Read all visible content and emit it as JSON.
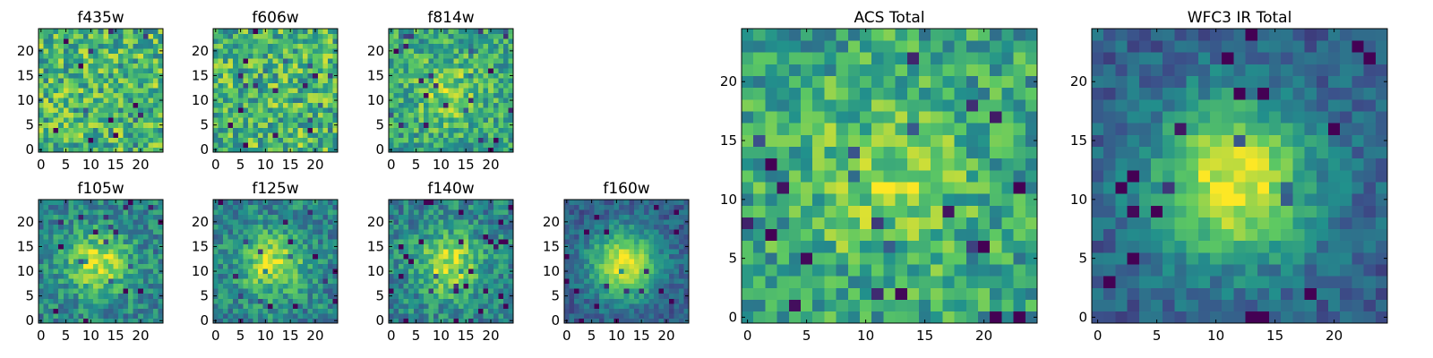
{
  "chart_data": [
    {
      "type": "heatmap",
      "title": "f435w",
      "size": 25,
      "xticks": [
        0,
        5,
        10,
        15,
        20
      ],
      "yticks": [
        0,
        5,
        10,
        15,
        20
      ],
      "pattern": "noise",
      "seed": 11
    },
    {
      "type": "heatmap",
      "title": "f606w",
      "size": 25,
      "xticks": [
        0,
        5,
        10,
        15,
        20
      ],
      "yticks": [
        0,
        5,
        10,
        15,
        20
      ],
      "pattern": "noise",
      "seed": 23
    },
    {
      "type": "heatmap",
      "title": "f814w",
      "size": 25,
      "xticks": [
        0,
        5,
        10,
        15,
        20
      ],
      "yticks": [
        0,
        5,
        10,
        15,
        20
      ],
      "pattern": "faint-source",
      "seed": 37
    },
    {
      "type": "heatmap",
      "title": "f105w",
      "size": 25,
      "xticks": [
        0,
        5,
        10,
        15,
        20
      ],
      "yticks": [
        0,
        5,
        10,
        15,
        20
      ],
      "pattern": "source",
      "seed": 41
    },
    {
      "type": "heatmap",
      "title": "f125w",
      "size": 25,
      "xticks": [
        0,
        5,
        10,
        15,
        20
      ],
      "yticks": [
        0,
        5,
        10,
        15,
        20
      ],
      "pattern": "source",
      "seed": 53
    },
    {
      "type": "heatmap",
      "title": "f140w",
      "size": 25,
      "xticks": [
        0,
        5,
        10,
        15,
        20
      ],
      "yticks": [
        0,
        5,
        10,
        15,
        20
      ],
      "pattern": "source",
      "seed": 67
    },
    {
      "type": "heatmap",
      "title": "f160w",
      "size": 25,
      "xticks": [
        0,
        5,
        10,
        15,
        20
      ],
      "yticks": [
        0,
        5,
        10,
        15,
        20
      ],
      "pattern": "bright-source",
      "seed": 79
    },
    {
      "type": "heatmap",
      "title": "ACS Total",
      "size": 25,
      "xticks": [
        0,
        5,
        10,
        15,
        20
      ],
      "yticks": [
        0,
        5,
        10,
        15,
        20
      ],
      "pattern": "faint-source",
      "seed": 83
    },
    {
      "type": "heatmap",
      "title": "WFC3 IR Total",
      "size": 25,
      "xticks": [
        0,
        5,
        10,
        15,
        20
      ],
      "yticks": [
        0,
        5,
        10,
        15,
        20
      ],
      "pattern": "bright-source",
      "seed": 97
    }
  ],
  "colormap": [
    "#440154",
    "#3b528b",
    "#21918c",
    "#5ec962",
    "#fde725"
  ]
}
